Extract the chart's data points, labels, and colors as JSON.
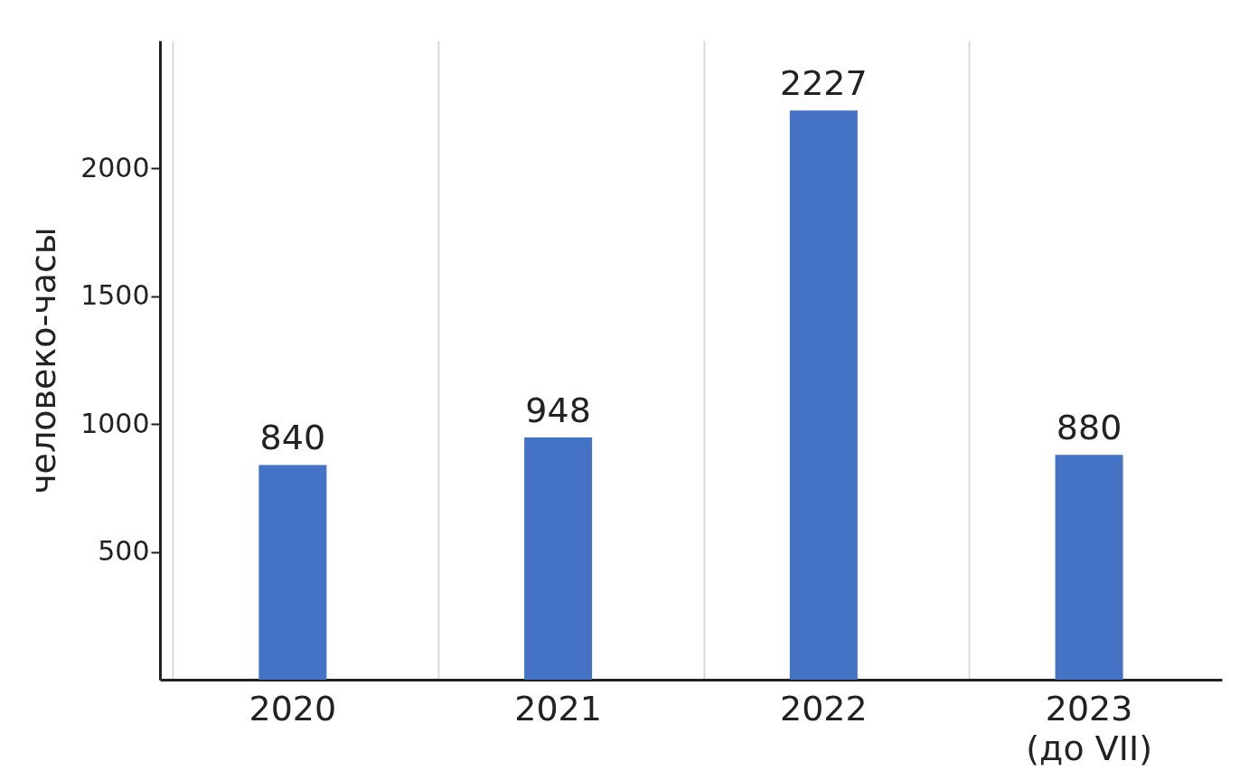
{
  "chart_data": {
    "type": "bar",
    "ylabel": "человеко-часы",
    "categories": [
      "2020",
      "2021",
      "2022",
      "2023\n(до VII)"
    ],
    "values": [
      840,
      948,
      2227,
      880
    ],
    "color": "#4472c4",
    "ylim": [
      0,
      2500
    ],
    "yticks": [
      500,
      1000,
      1500,
      2000
    ],
    "grid": "x",
    "data_labels": true
  }
}
